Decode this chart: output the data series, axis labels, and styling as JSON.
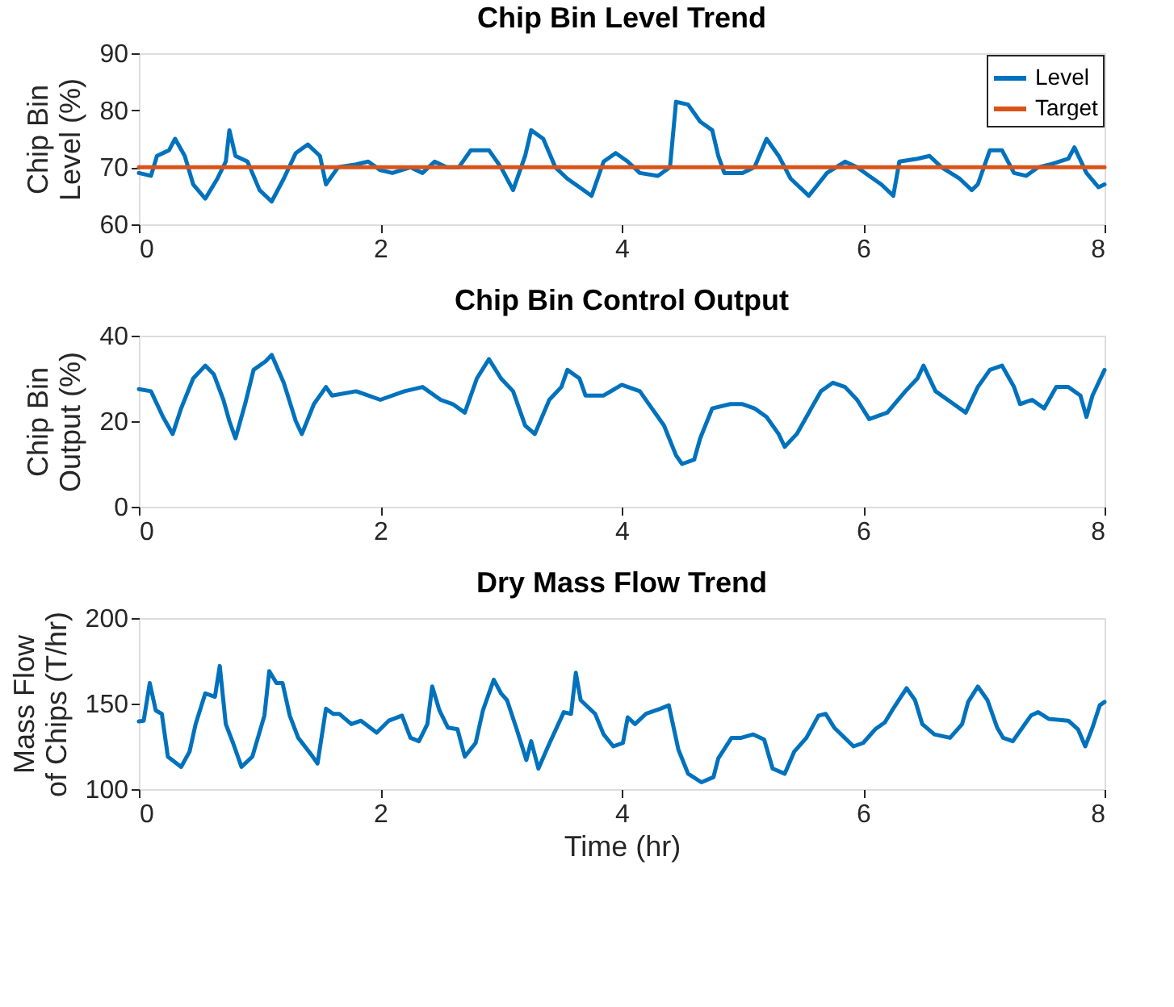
{
  "chart_data": [
    {
      "type": "line",
      "title": "Chip Bin Level Trend",
      "ylabel": "Chip Bin\nLevel (%)",
      "xlim": [
        0,
        8
      ],
      "xticks": [
        0,
        2,
        4,
        6,
        8
      ],
      "ylim": [
        60,
        90
      ],
      "yticks": [
        60,
        70,
        80,
        90
      ],
      "grid": false,
      "legend": "top right",
      "line_style": "solid",
      "series": [
        {
          "name": "Level",
          "color": "#0072bd",
          "x": [
            0,
            0.1,
            0.15,
            0.25,
            0.3,
            0.38,
            0.45,
            0.55,
            0.65,
            0.72,
            0.75,
            0.8,
            0.9,
            1.0,
            1.1,
            1.2,
            1.3,
            1.4,
            1.5,
            1.55,
            1.65,
            1.8,
            1.9,
            2.0,
            2.1,
            2.25,
            2.35,
            2.45,
            2.55,
            2.65,
            2.75,
            2.9,
            3.0,
            3.1,
            3.2,
            3.25,
            3.35,
            3.45,
            3.55,
            3.65,
            3.75,
            3.85,
            3.95,
            4.05,
            4.15,
            4.3,
            4.4,
            4.45,
            4.55,
            4.65,
            4.75,
            4.8,
            4.85,
            5.0,
            5.1,
            5.2,
            5.3,
            5.4,
            5.55,
            5.7,
            5.85,
            5.95,
            6.05,
            6.15,
            6.25,
            6.3,
            6.45,
            6.55,
            6.65,
            6.8,
            6.9,
            6.95,
            7.05,
            7.15,
            7.25,
            7.35,
            7.45,
            7.55,
            7.7,
            7.75,
            7.85,
            7.95,
            8.0
          ],
          "values": [
            69,
            68.5,
            72,
            73,
            75,
            72,
            67,
            64.5,
            68,
            71,
            76.5,
            72,
            71,
            66,
            64,
            68,
            72.5,
            74,
            72,
            67,
            70,
            70.5,
            71,
            69.5,
            69,
            70,
            69,
            71,
            70,
            70,
            73,
            73,
            70,
            66,
            72,
            76.5,
            75,
            70,
            68,
            66.5,
            65,
            71,
            72.5,
            71,
            69,
            68.5,
            70,
            81.5,
            81,
            78,
            76.5,
            72,
            69,
            69,
            70,
            75,
            72,
            68,
            65,
            69,
            71,
            70,
            68.5,
            67,
            65,
            71,
            71.5,
            72,
            70,
            68,
            66,
            67,
            73,
            73,
            69,
            68.5,
            70,
            70.5,
            71.5,
            73.5,
            69,
            66.5,
            67
          ]
        },
        {
          "name": "Target",
          "color": "#d95319",
          "x": [
            0,
            8
          ],
          "values": [
            70,
            70
          ]
        }
      ]
    },
    {
      "type": "line",
      "title": "Chip Bin Control Output",
      "ylabel": "Chip Bin\nOutput (%)",
      "xlim": [
        0,
        8
      ],
      "xticks": [
        0,
        2,
        4,
        6,
        8
      ],
      "ylim": [
        0,
        40
      ],
      "yticks": [
        0,
        20,
        40
      ],
      "grid": false,
      "line_style": "solid",
      "series": [
        {
          "color": "#0072bd",
          "x": [
            0,
            0.1,
            0.2,
            0.28,
            0.35,
            0.45,
            0.55,
            0.62,
            0.7,
            0.75,
            0.8,
            0.88,
            0.95,
            1.05,
            1.1,
            1.2,
            1.3,
            1.35,
            1.45,
            1.55,
            1.6,
            1.8,
            1.9,
            2.0,
            2.2,
            2.35,
            2.5,
            2.6,
            2.7,
            2.8,
            2.9,
            3.0,
            3.1,
            3.2,
            3.28,
            3.4,
            3.5,
            3.55,
            3.65,
            3.7,
            3.85,
            4.0,
            4.15,
            4.25,
            4.35,
            4.45,
            4.5,
            4.6,
            4.65,
            4.75,
            4.9,
            5.0,
            5.1,
            5.2,
            5.3,
            5.35,
            5.45,
            5.55,
            5.65,
            5.75,
            5.85,
            5.95,
            6.05,
            6.2,
            6.35,
            6.45,
            6.5,
            6.6,
            6.75,
            6.85,
            6.95,
            7.05,
            7.15,
            7.25,
            7.3,
            7.4,
            7.5,
            7.6,
            7.7,
            7.8,
            7.85,
            7.9,
            8.0
          ],
          "values": [
            27.5,
            27,
            21,
            17,
            23,
            30,
            33,
            31,
            25,
            20,
            16,
            24,
            32,
            34,
            35.5,
            29,
            20,
            17,
            24,
            28,
            26,
            27,
            26,
            25,
            27,
            28,
            25,
            24,
            22,
            30,
            34.5,
            30,
            27,
            19,
            17,
            25,
            28,
            32,
            30,
            26,
            26,
            28.5,
            27,
            23,
            19,
            12,
            10,
            11,
            16,
            23,
            24,
            24,
            23,
            21,
            17,
            14,
            17,
            22,
            27,
            29,
            28,
            25,
            20.5,
            22,
            27,
            30,
            33,
            27,
            24,
            22,
            28,
            32,
            33,
            28,
            24,
            25,
            23,
            28,
            28,
            26,
            21,
            26,
            32
          ]
        }
      ]
    },
    {
      "type": "line",
      "title": "Dry Mass Flow Trend",
      "ylabel": "Mass Flow\nof Chips (T/hr)",
      "xlabel": "Time (hr)",
      "xlim": [
        0,
        8
      ],
      "xticks": [
        0,
        2,
        4,
        6,
        8
      ],
      "ylim": [
        100,
        200
      ],
      "yticks": [
        100,
        150,
        200
      ],
      "grid": false,
      "line_style": "solid",
      "series": [
        {
          "color": "#0072bd",
          "x": [
            0,
            0.04,
            0.09,
            0.14,
            0.19,
            0.24,
            0.35,
            0.42,
            0.47,
            0.55,
            0.63,
            0.67,
            0.72,
            0.78,
            0.85,
            0.94,
            1.04,
            1.08,
            1.14,
            1.19,
            1.25,
            1.32,
            1.43,
            1.48,
            1.55,
            1.61,
            1.66,
            1.76,
            1.84,
            1.97,
            2.07,
            2.18,
            2.25,
            2.32,
            2.39,
            2.43,
            2.49,
            2.56,
            2.64,
            2.7,
            2.79,
            2.85,
            2.94,
            3.0,
            3.05,
            3.13,
            3.21,
            3.25,
            3.31,
            3.39,
            3.52,
            3.58,
            3.62,
            3.66,
            3.78,
            3.85,
            3.93,
            4.01,
            4.05,
            4.11,
            4.2,
            4.32,
            4.39,
            4.47,
            4.55,
            4.66,
            4.76,
            4.8,
            4.91,
            4.99,
            5.09,
            5.18,
            5.25,
            5.35,
            5.43,
            5.53,
            5.63,
            5.69,
            5.76,
            5.92,
            6.0,
            6.1,
            6.18,
            6.24,
            6.36,
            6.43,
            6.49,
            6.59,
            6.72,
            6.82,
            6.87,
            6.95,
            7.03,
            7.11,
            7.16,
            7.24,
            7.39,
            7.45,
            7.54,
            7.7,
            7.78,
            7.84,
            7.9,
            7.96,
            8.0
          ],
          "values": [
            139.6,
            140,
            162,
            146,
            144,
            119,
            113,
            122,
            138,
            156,
            154,
            172,
            138,
            127,
            113,
            119,
            143,
            169,
            162,
            162,
            143,
            130,
            120,
            115,
            147,
            144,
            144,
            138,
            140,
            133,
            140,
            143,
            130,
            128,
            138,
            160,
            146,
            136,
            135,
            119,
            127,
            146,
            164,
            156,
            152,
            135,
            117,
            128,
            112,
            125,
            145,
            144,
            168,
            152,
            144,
            132,
            125,
            127,
            142,
            138,
            144,
            147,
            149,
            123,
            109,
            104,
            107,
            118,
            130,
            130,
            132,
            129,
            112,
            109,
            122,
            130,
            143,
            144,
            136,
            125,
            127,
            135,
            139,
            146,
            159,
            152,
            138,
            132,
            130,
            138,
            151,
            160,
            152,
            136,
            130,
            128,
            143,
            145,
            141,
            140,
            135,
            125,
            136,
            149,
            151
          ]
        }
      ]
    }
  ]
}
